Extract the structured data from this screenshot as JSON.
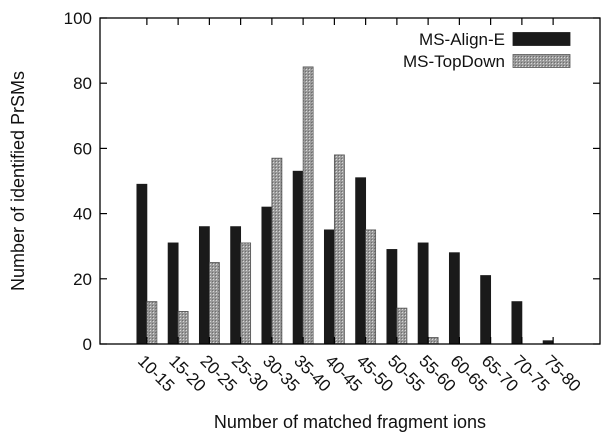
{
  "chart_data": {
    "type": "bar",
    "xlabel": "Number of matched fragment ions",
    "ylabel": "Number of identified PrSMs",
    "ylim": [
      0,
      100
    ],
    "yticks": [
      0,
      20,
      40,
      60,
      80,
      100
    ],
    "grid": false,
    "legend": "top-right",
    "categories": [
      "10-15",
      "15-20",
      "20-25",
      "25-30",
      "30-35",
      "35-40",
      "40-45",
      "45-50",
      "50-55",
      "55-60",
      "60-65",
      "65-70",
      "70-75",
      "75-80"
    ],
    "series": [
      {
        "name": "MS-Align-E",
        "color": "#1a1a1a",
        "pattern": "solid",
        "values": [
          49,
          31,
          36,
          36,
          42,
          53,
          35,
          51,
          29,
          31,
          28,
          21,
          13,
          1
        ]
      },
      {
        "name": "MS-TopDown",
        "color": "#8c8c8c",
        "pattern": "dotted-gray",
        "values": [
          13,
          10,
          25,
          31,
          57,
          85,
          58,
          35,
          11,
          2,
          0,
          0,
          0,
          0
        ]
      }
    ]
  }
}
